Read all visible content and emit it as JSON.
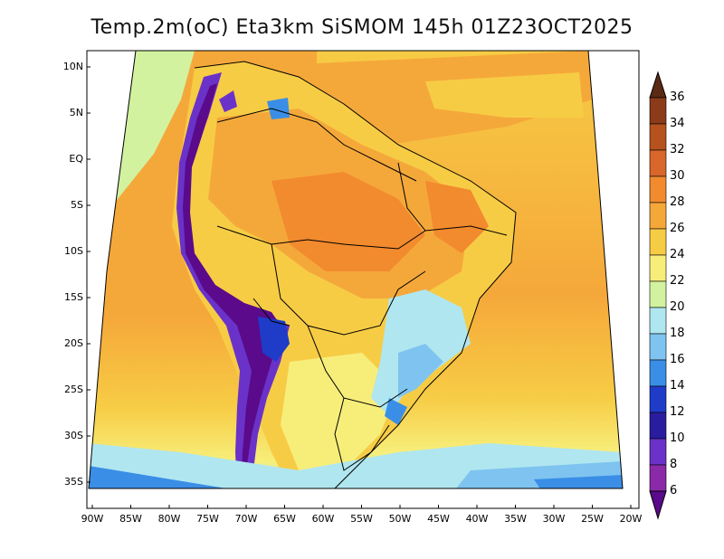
{
  "title": "Temp.2m(oC) Eta3km SiSMOM 145h 01Z23OCT2025",
  "lat_labels": [
    "10N",
    "5N",
    "EQ",
    "5S",
    "10S",
    "15S",
    "20S",
    "25S",
    "30S",
    "35S"
  ],
  "lon_labels": [
    "90W",
    "85W",
    "80W",
    "75W",
    "70W",
    "65W",
    "60W",
    "55W",
    "50W",
    "45W",
    "40W",
    "35W",
    "30W",
    "25W",
    "20W"
  ],
  "colorbar": {
    "labels": [
      "36",
      "34",
      "32",
      "30",
      "28",
      "26",
      "24",
      "22",
      "20",
      "18",
      "16",
      "14",
      "12",
      "10",
      "8",
      "6"
    ],
    "colors": [
      "#5a2a14",
      "#8b3a1a",
      "#b5521e",
      "#d9662a",
      "#f28a2e",
      "#f5a83a",
      "#f7cc45",
      "#f7ee7a",
      "#d2f2a0",
      "#b0e6f0",
      "#7fc4f0",
      "#3a8ee6",
      "#1e3cc8",
      "#2a1c9e",
      "#6a32c8",
      "#8a2aa8",
      "#5a0a8a"
    ]
  }
}
